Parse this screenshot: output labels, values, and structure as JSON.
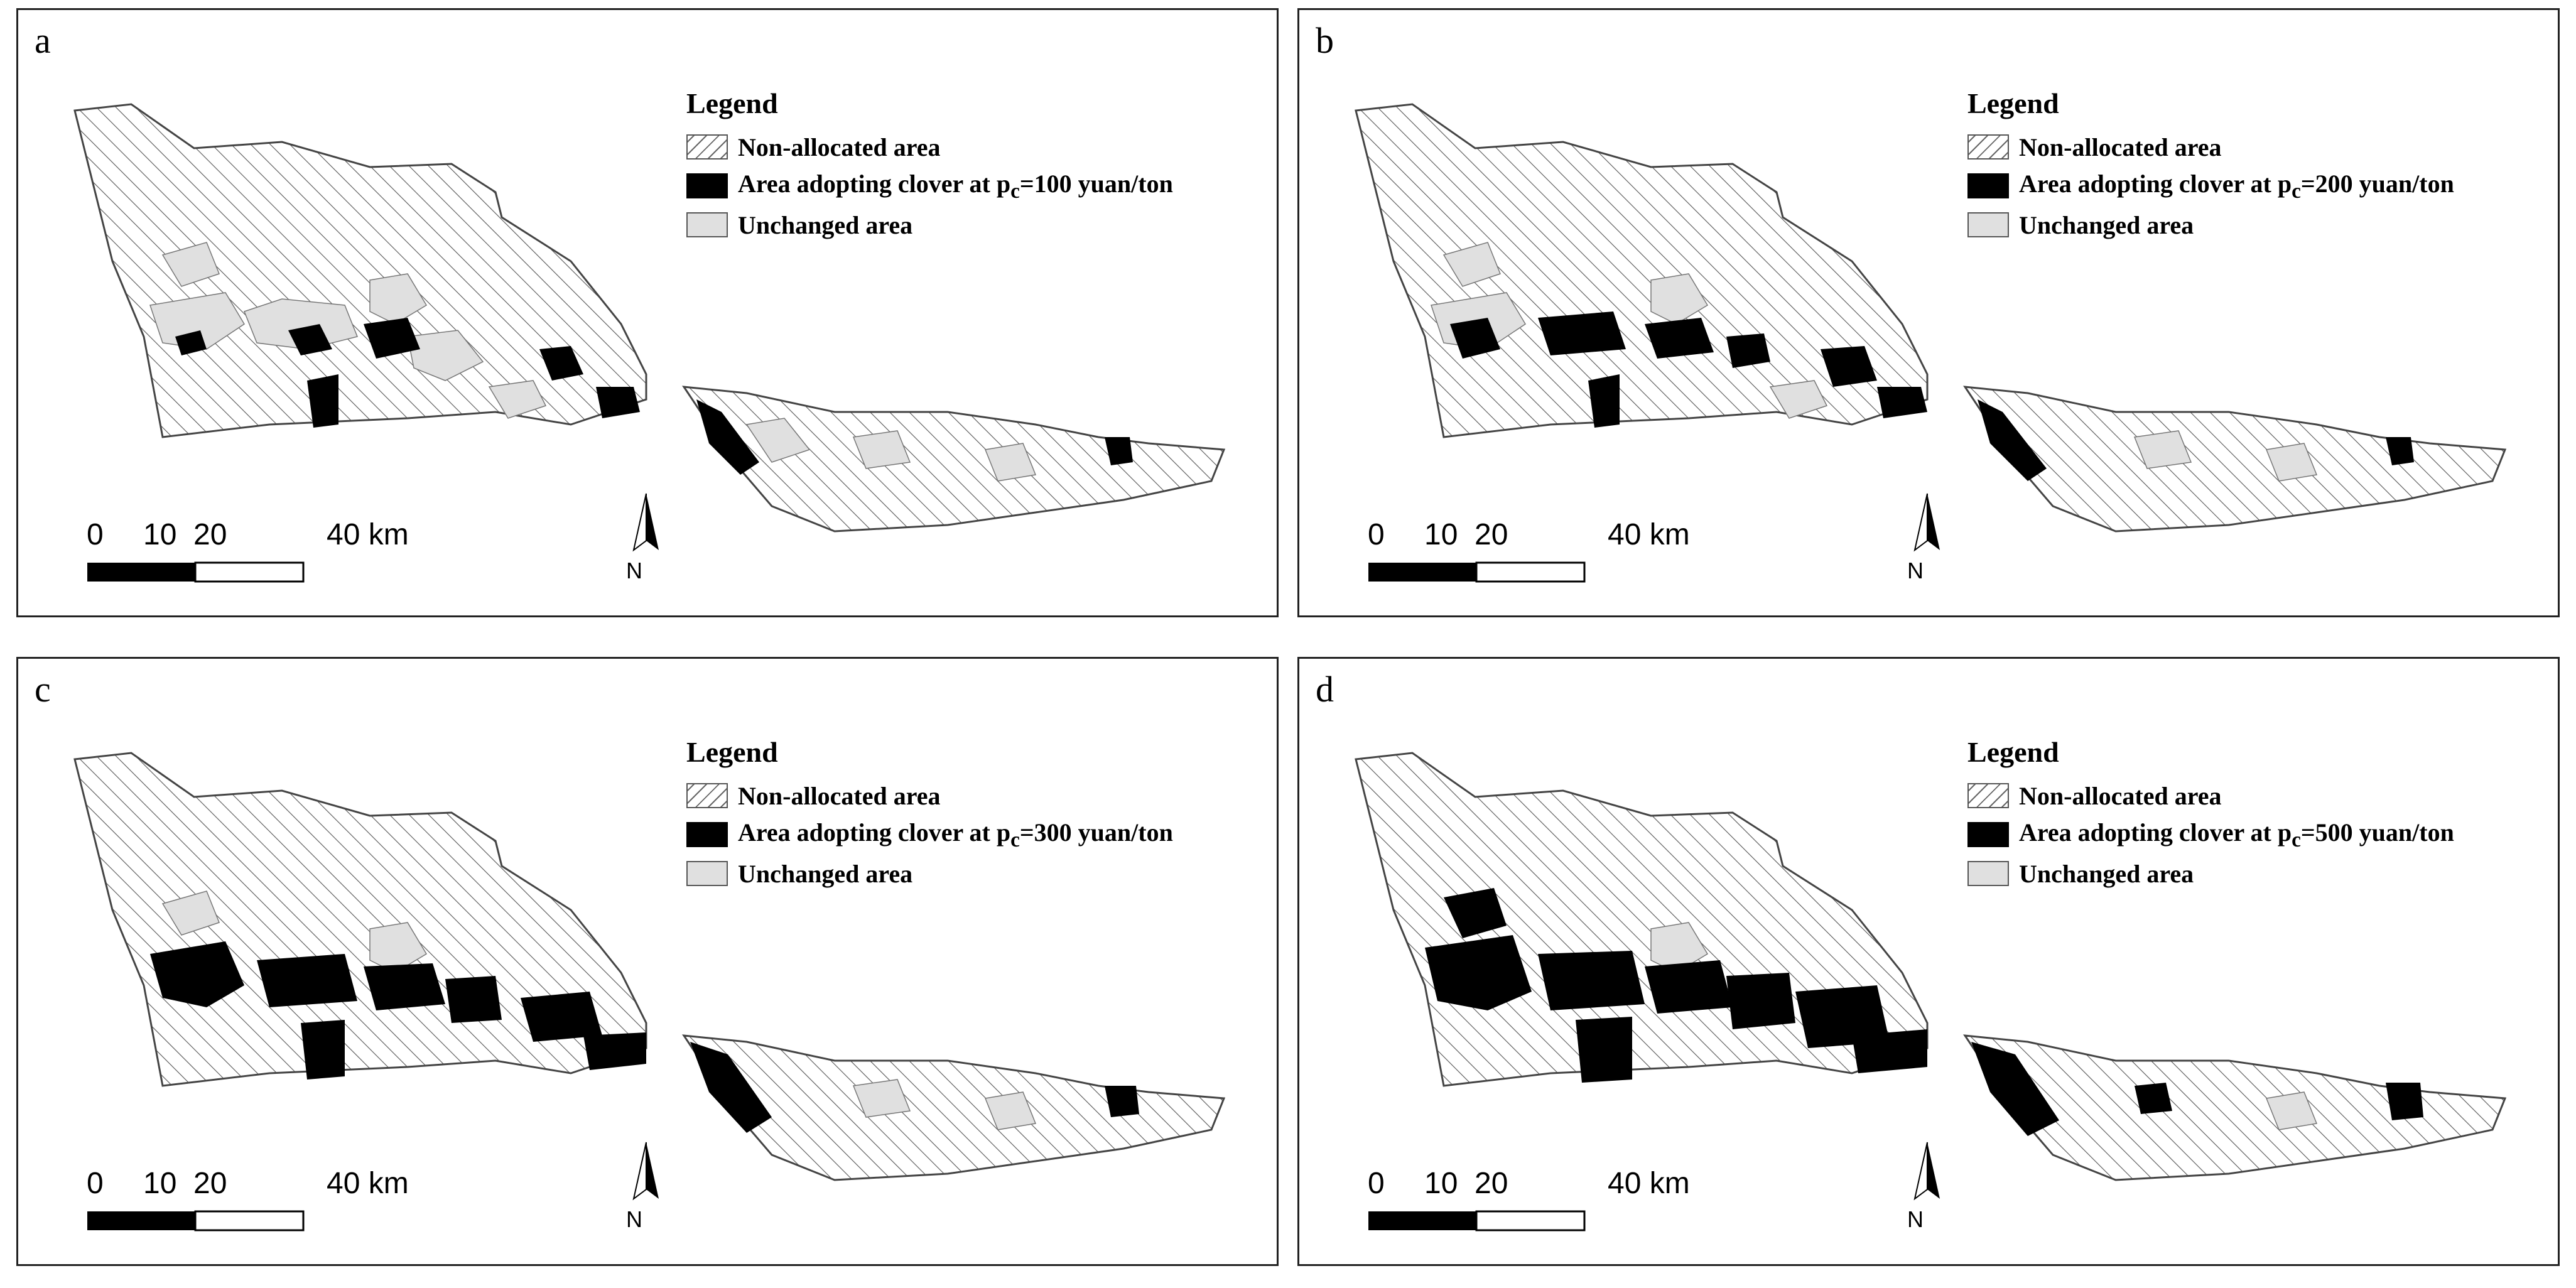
{
  "panels": [
    {
      "letter": "a",
      "legend": {
        "title": "Legend",
        "non_allocated": "Non-allocated area",
        "clover_prefix": "Area adopting clover at p",
        "clover_sub": "c",
        "clover_suffix": "=100 yuan/ton",
        "unchanged": "Unchanged area"
      },
      "scalebar": {
        "labels": [
          "0",
          "10",
          "20",
          "40 km"
        ]
      },
      "north_label": "N"
    },
    {
      "letter": "b",
      "legend": {
        "title": "Legend",
        "non_allocated": "Non-allocated area",
        "clover_prefix": "Area adopting clover at p",
        "clover_sub": "c",
        "clover_suffix": "=200 yuan/ton",
        "unchanged": "Unchanged area"
      },
      "scalebar": {
        "labels": [
          "0",
          "10",
          "20",
          "40 km"
        ]
      },
      "north_label": "N"
    },
    {
      "letter": "c",
      "legend": {
        "title": "Legend",
        "non_allocated": "Non-allocated area",
        "clover_prefix": "Area adopting clover at p",
        "clover_sub": "c",
        "clover_suffix": "=300 yuan/ton",
        "unchanged": "Unchanged area"
      },
      "scalebar": {
        "labels": [
          "0",
          "10",
          "20",
          "40 km"
        ]
      },
      "north_label": "N"
    },
    {
      "letter": "d",
      "legend": {
        "title": "Legend",
        "non_allocated": "Non-allocated area",
        "clover_prefix": "Area adopting clover at p",
        "clover_sub": "c",
        "clover_suffix": "=500 yuan/ton",
        "unchanged": "Unchanged area"
      },
      "scalebar": {
        "labels": [
          "0",
          "10",
          "20",
          "40 km"
        ]
      },
      "north_label": "N"
    }
  ],
  "colors": {
    "clover": "#000000",
    "unchanged": "#e0e0e0",
    "hatch": "#555555",
    "border": "#222222"
  }
}
